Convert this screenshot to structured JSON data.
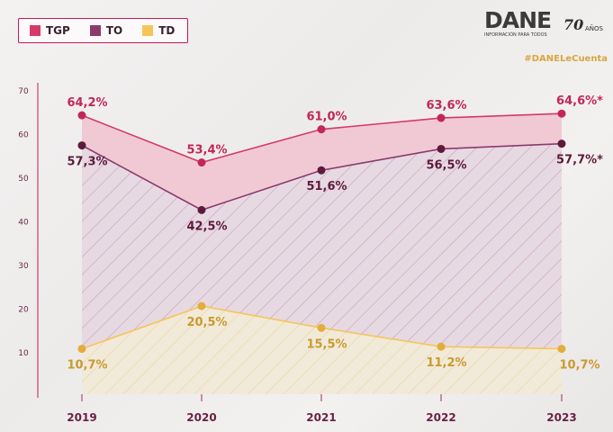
{
  "legend": [
    {
      "label": "TGP",
      "color": "#d63868"
    },
    {
      "label": "TO",
      "color": "#8b3a6b"
    },
    {
      "label": "TD",
      "color": "#f5c55a"
    }
  ],
  "brand": {
    "name": "DANE",
    "tagline": "INFORMACIÓN PARA TODOS",
    "years": "70",
    "years_label": "AÑOS"
  },
  "hashtag": "#DANELeCuenta",
  "colors": {
    "tgp_line": "#d63868",
    "tgp_marker": "#c2265a",
    "tgp_label": "#c2265a",
    "to_line": "#8b3a6b",
    "to_marker": "#5e1a3d",
    "to_label": "#5e1a3d",
    "td_line": "#f5c55a",
    "td_marker": "#e3ad3c",
    "td_label": "#c99a2e",
    "axis": "#c2185b"
  },
  "chart_data": {
    "type": "line",
    "categories": [
      "2019",
      "2020",
      "2021",
      "2022",
      "2023"
    ],
    "ylim": [
      0,
      70
    ],
    "yticks": [
      10,
      20,
      30,
      40,
      50,
      60,
      70
    ],
    "series": [
      {
        "name": "TGP",
        "values": [
          64.2,
          53.4,
          61.0,
          63.6,
          64.6
        ],
        "labels": [
          "64,2%",
          "53,4%",
          "61,0%",
          "63,6%",
          "64,6%*"
        ]
      },
      {
        "name": "TO",
        "values": [
          57.3,
          42.5,
          51.6,
          56.5,
          57.7
        ],
        "labels": [
          "57,3%",
          "42,5%",
          "51,6%",
          "56,5%",
          "57,7%*"
        ]
      },
      {
        "name": "TD",
        "values": [
          10.7,
          20.5,
          15.5,
          11.2,
          10.7
        ],
        "labels": [
          "10,7%",
          "20,5%",
          "15,5%",
          "11,2%",
          "10,7%"
        ]
      }
    ]
  }
}
